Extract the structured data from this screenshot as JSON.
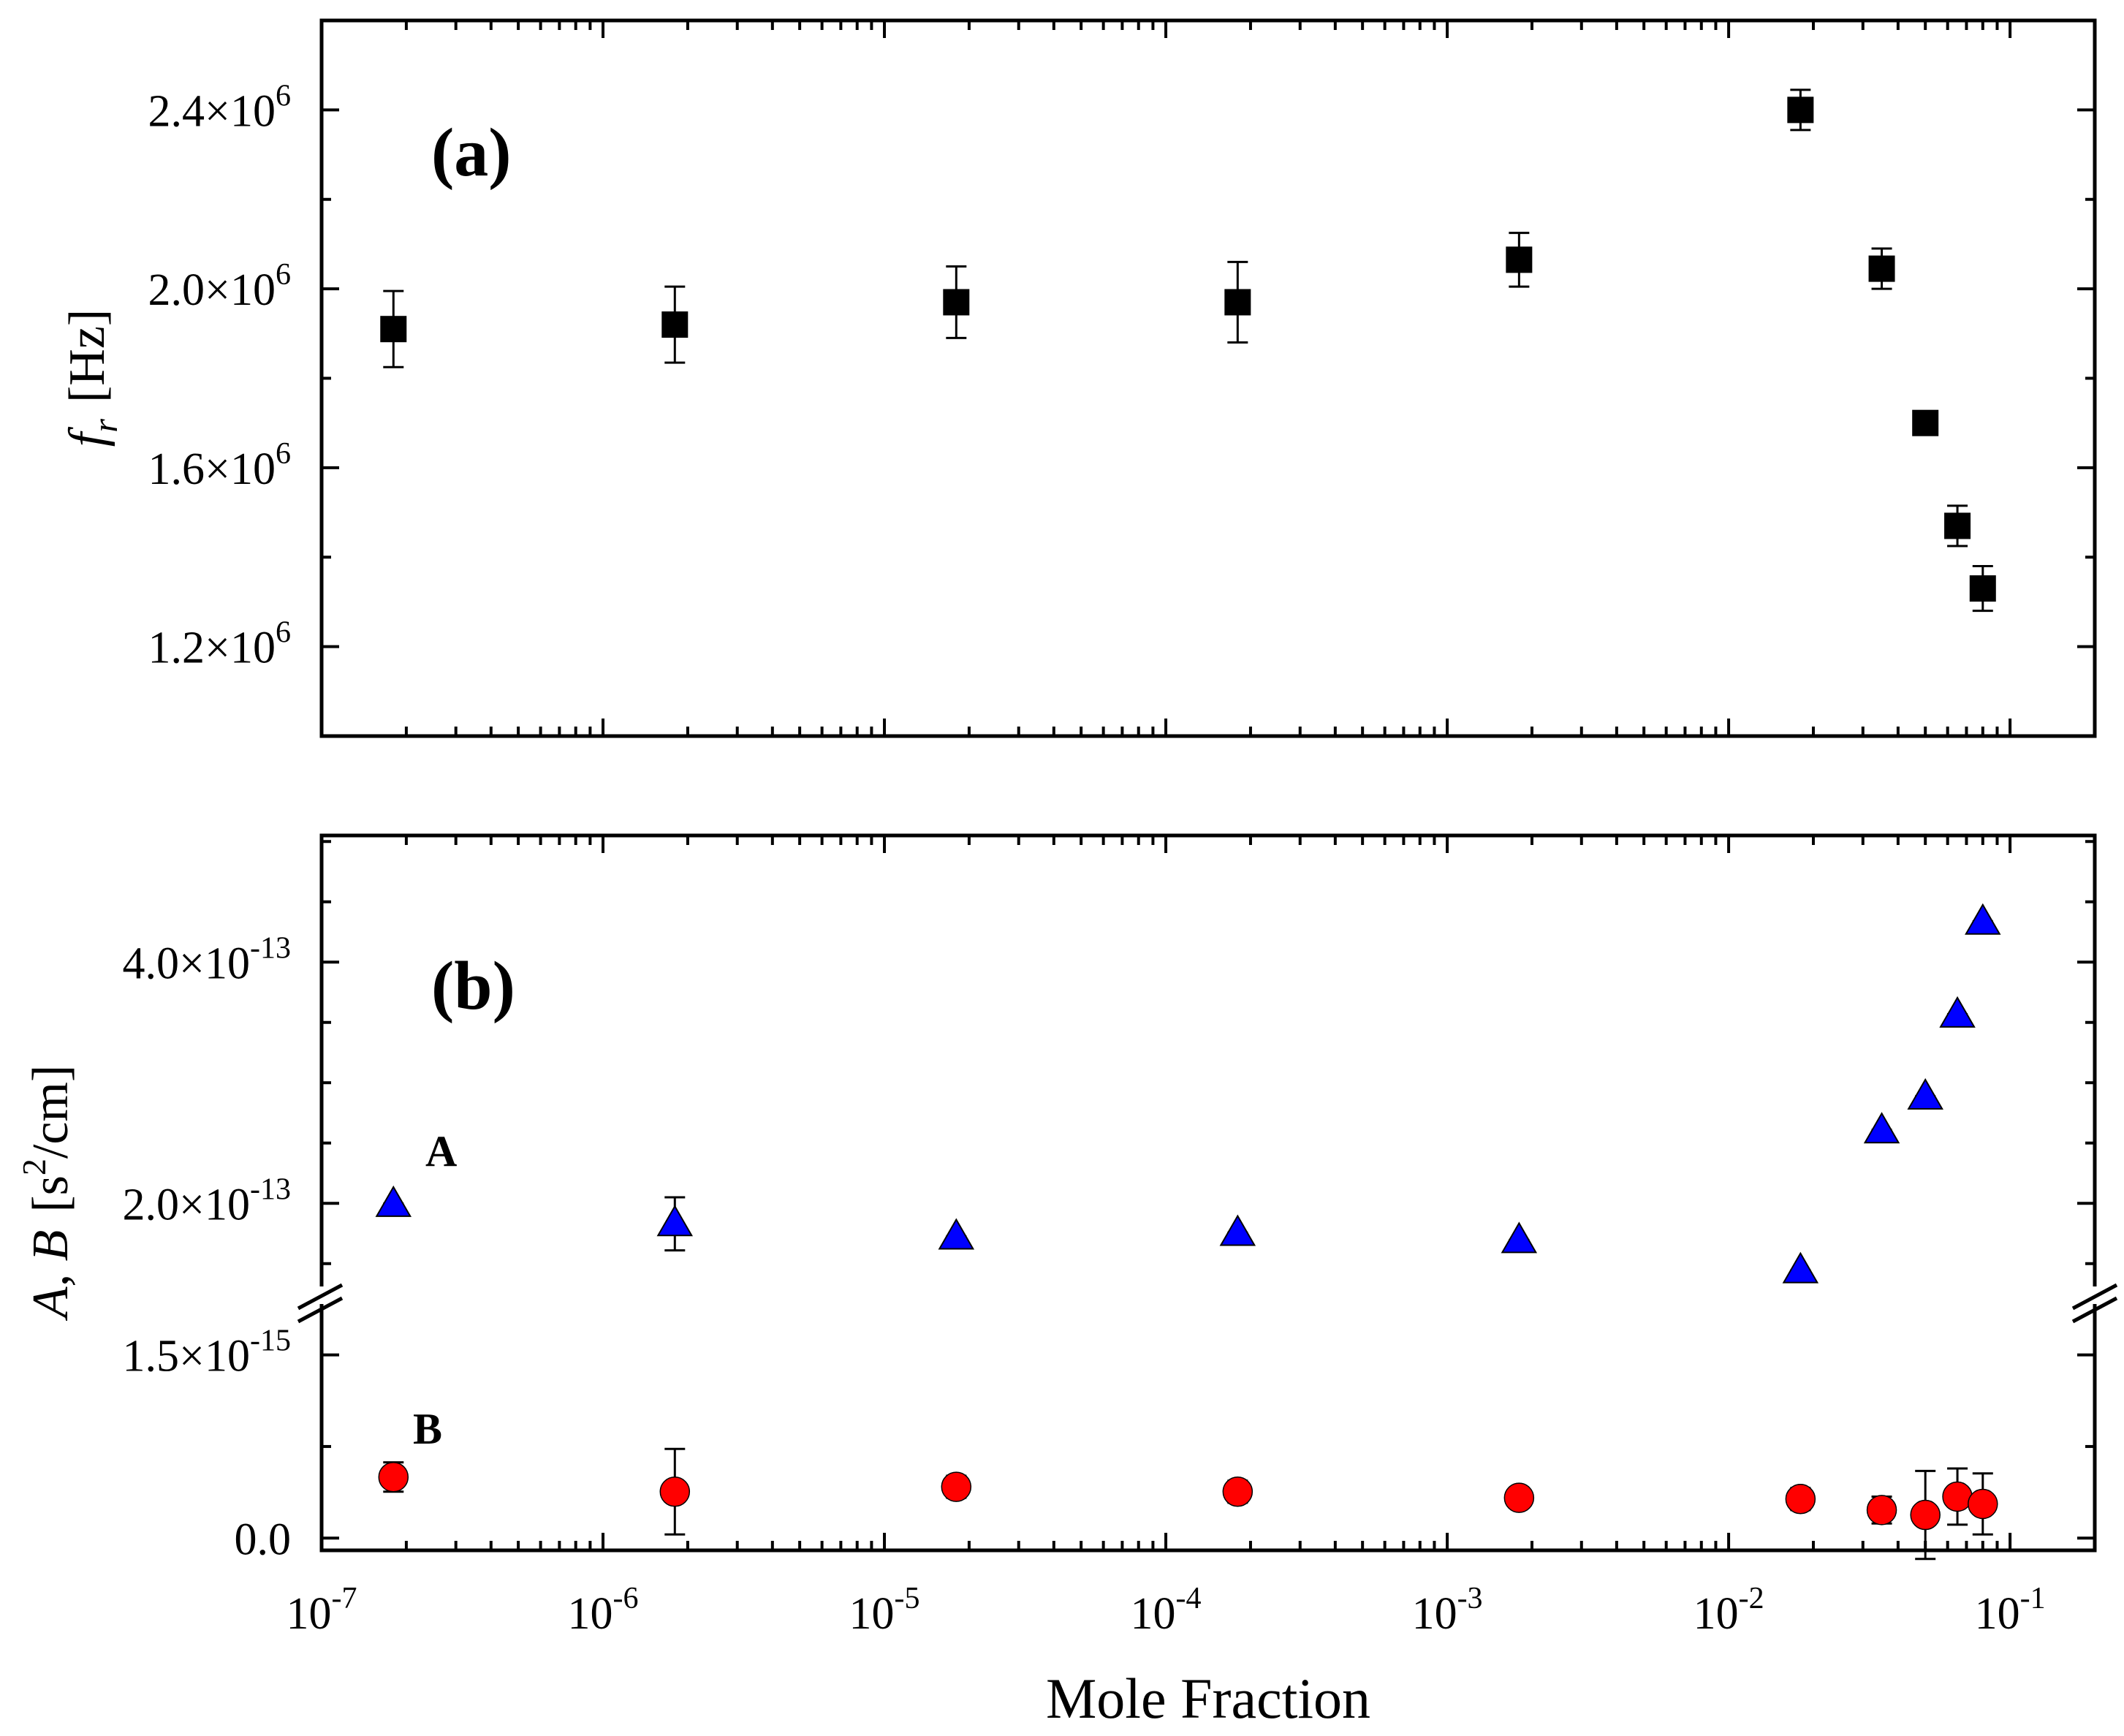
{
  "chart_data": [
    {
      "panel_label": "(a)",
      "type": "scatter",
      "xscale": "log",
      "xlim": [
        1e-07,
        0.2
      ],
      "ylim": [
        1000000.0,
        2600000.0
      ],
      "ylabel_parts": {
        "sym": "f",
        "sub": "r",
        "unit": "[Hz]"
      },
      "yticks": [
        {
          "value": 1200000.0,
          "mant": "1.2×10",
          "exp": "6"
        },
        {
          "value": 1600000.0,
          "mant": "1.6×10",
          "exp": "6"
        },
        {
          "value": 2000000.0,
          "mant": "2.0×10",
          "exp": "6"
        },
        {
          "value": 2400000.0,
          "mant": "2.4×10",
          "exp": "6"
        }
      ],
      "series": [
        {
          "name": "f_r",
          "marker": "square",
          "color": "#000000",
          "x": [
            1.8e-07,
            1.8e-06,
            1.8e-05,
            0.00018,
            0.0018,
            0.018,
            0.035,
            0.05,
            0.065,
            0.08
          ],
          "y": [
            1910000.0,
            1920000.0,
            1970000.0,
            1970000.0,
            2065000.0,
            2400000.0,
            2045000.0,
            1700000.0,
            1470000.0,
            1330000.0
          ],
          "err": [
            85000.0,
            85000.0,
            80000.0,
            90000.0,
            60000.0,
            45000.0,
            45000.0,
            0.0,
            45000.0,
            50000.0
          ]
        }
      ]
    },
    {
      "panel_label": "(b)",
      "type": "scatter",
      "xscale": "log",
      "xlim": [
        1e-07,
        0.2
      ],
      "broken_axis": true,
      "ylabel_parts": {
        "vars": "A, B",
        "unit_pre": "[s",
        "unit_exp": "2",
        "unit_post": "/cm]"
      },
      "upper_segment": {
        "ylim": [
          1.25e-13,
          5.05e-13
        ],
        "yticks": [
          {
            "value": 2e-13,
            "mant": "2.0×10",
            "exp": "-13"
          },
          {
            "value": 4e-13,
            "mant": "4.0×10",
            "exp": "-13"
          }
        ]
      },
      "lower_segment": {
        "ylim": [
          -1e-16,
          2e-15
        ],
        "yticks": [
          {
            "value": 0.0,
            "mant": "0.0",
            "exp": ""
          },
          {
            "value": 1.5e-15,
            "mant": "1.5×10",
            "exp": "-15"
          }
        ]
      },
      "series": [
        {
          "name": "A",
          "label": "A",
          "marker": "triangle",
          "color": "#0000ff",
          "segment": "upper",
          "x": [
            1.8e-07,
            1.8e-06,
            1.8e-05,
            0.00018,
            0.0018,
            0.018,
            0.035,
            0.05,
            0.065,
            0.08
          ],
          "y": [
            1.99e-13,
            1.83e-13,
            1.72e-13,
            1.75e-13,
            1.69e-13,
            1.44e-13,
            2.6e-13,
            2.88e-13,
            3.56e-13,
            4.33e-13
          ],
          "err": [
            8e-16,
            2.2e-14,
            6e-16,
            7e-16,
            6e-16,
            5e-16,
            9e-16,
            8e-16,
            8e-16,
            9e-16
          ]
        },
        {
          "name": "B",
          "label": "B",
          "marker": "circle",
          "color": "#ff0000",
          "segment": "lower",
          "x": [
            1.8e-07,
            1.8e-06,
            1.8e-05,
            0.00018,
            0.0018,
            0.018,
            0.035,
            0.05,
            0.065,
            0.08
          ],
          "y": [
            5e-16,
            3.8e-16,
            4.2e-16,
            3.8e-16,
            3.3e-16,
            3.2e-16,
            2.3e-16,
            1.9e-16,
            3.4e-16,
            2.8e-16
          ],
          "err": [
            1.2e-16,
            3.5e-16,
            9e-17,
            9e-17,
            8e-17,
            9e-17,
            1.1e-16,
            3.6e-16,
            2.3e-16,
            2.5e-16
          ]
        }
      ]
    }
  ],
  "xaxis": {
    "label": "Mole Fraction",
    "ticks": [
      {
        "value": 1e-07,
        "base": "10",
        "exp": "-7"
      },
      {
        "value": 1e-06,
        "base": "10",
        "exp": "-6"
      },
      {
        "value": 1e-05,
        "base": "10",
        "exp": "-5"
      },
      {
        "value": 0.0001,
        "base": "10",
        "exp": "-4"
      },
      {
        "value": 0.001,
        "base": "10",
        "exp": "-3"
      },
      {
        "value": 0.01,
        "base": "10",
        "exp": "-2"
      },
      {
        "value": 0.1,
        "base": "10",
        "exp": "-1"
      }
    ]
  }
}
